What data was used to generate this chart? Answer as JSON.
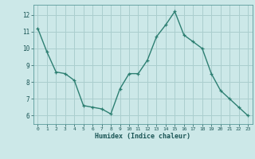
{
  "x": [
    0,
    1,
    2,
    3,
    4,
    5,
    6,
    7,
    8,
    9,
    10,
    11,
    12,
    13,
    14,
    15,
    16,
    17,
    18,
    19,
    20,
    21,
    22,
    23
  ],
  "y": [
    11.2,
    9.8,
    8.6,
    8.5,
    8.1,
    6.6,
    6.5,
    6.4,
    6.1,
    7.6,
    8.5,
    8.5,
    9.3,
    10.7,
    11.4,
    12.2,
    10.8,
    10.4,
    10.0,
    8.5,
    7.5,
    7.0,
    6.5,
    6.0
  ],
  "xlabel": "Humidex (Indice chaleur)",
  "bg_color": "#cce8e8",
  "line_color": "#2d7f72",
  "grid_color": "#aacece",
  "ylim": [
    5.5,
    12.6
  ],
  "xlim": [
    -0.5,
    23.5
  ],
  "yticks": [
    6,
    7,
    8,
    9,
    10,
    11,
    12
  ],
  "xticks": [
    0,
    1,
    2,
    3,
    4,
    5,
    6,
    7,
    8,
    9,
    10,
    11,
    12,
    13,
    14,
    15,
    16,
    17,
    18,
    19,
    20,
    21,
    22,
    23
  ]
}
